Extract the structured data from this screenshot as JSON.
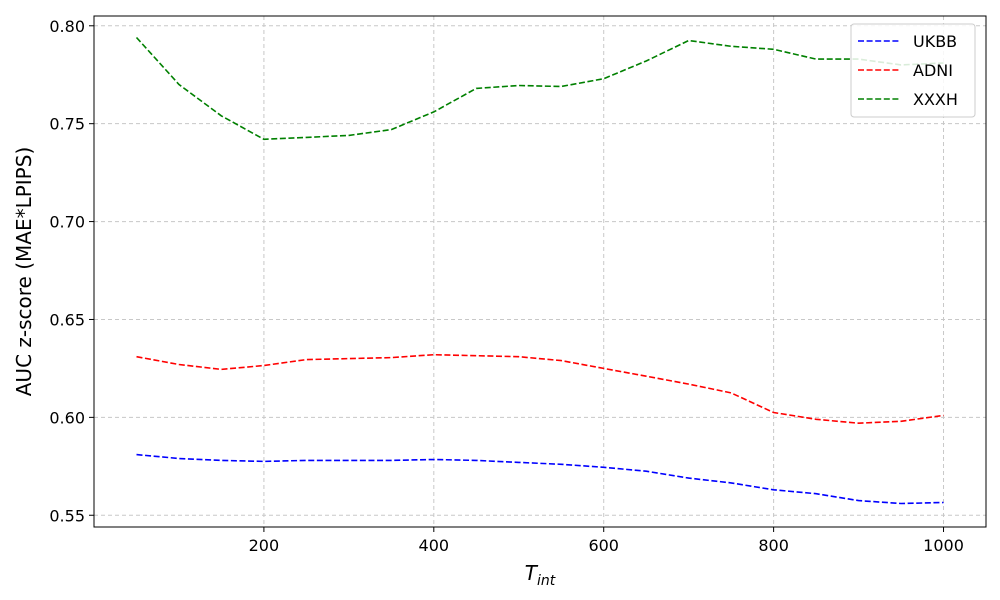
{
  "chart_data": {
    "type": "line",
    "title": "",
    "xlabel_main": "T",
    "xlabel_sub": "int",
    "ylabel": "AUC z-score (MAE*LPIPS)",
    "xlim": [
      0,
      1050
    ],
    "ylim": [
      0.544,
      0.805
    ],
    "xticks": [
      200,
      400,
      600,
      800,
      1000
    ],
    "yticks": [
      0.55,
      0.6,
      0.65,
      0.7,
      0.75,
      0.8
    ],
    "ytick_labels": [
      "0.55",
      "0.60",
      "0.65",
      "0.70",
      "0.75",
      "0.80"
    ],
    "xtick_labels": [
      "200",
      "400",
      "600",
      "800",
      "1000"
    ],
    "grid": true,
    "legend_position": "top-right",
    "x": [
      50,
      100,
      150,
      200,
      250,
      300,
      350,
      400,
      450,
      500,
      550,
      600,
      650,
      700,
      750,
      800,
      850,
      900,
      950,
      1000
    ],
    "series": [
      {
        "name": "UKBB",
        "color": "#0000ff",
        "values": [
          0.581,
          0.579,
          0.578,
          0.5775,
          0.578,
          0.578,
          0.578,
          0.5785,
          0.578,
          0.577,
          0.576,
          0.5745,
          0.5725,
          0.569,
          0.5665,
          0.563,
          0.561,
          0.5575,
          0.556,
          0.5565
        ]
      },
      {
        "name": "ADNI",
        "color": "#ff0000",
        "values": [
          0.631,
          0.627,
          0.6245,
          0.6265,
          0.6295,
          0.63,
          0.6305,
          0.632,
          0.6315,
          0.631,
          0.629,
          0.625,
          0.621,
          0.617,
          0.6125,
          0.6025,
          0.599,
          0.597,
          0.598,
          0.601
        ]
      },
      {
        "name": "XXXH",
        "color": "#008000",
        "values": [
          0.794,
          0.77,
          0.754,
          0.742,
          0.743,
          0.744,
          0.747,
          0.756,
          0.768,
          0.7695,
          0.769,
          0.773,
          0.782,
          0.7925,
          0.7895,
          0.788,
          0.783,
          0.783,
          0.78,
          0.781
        ]
      }
    ]
  }
}
